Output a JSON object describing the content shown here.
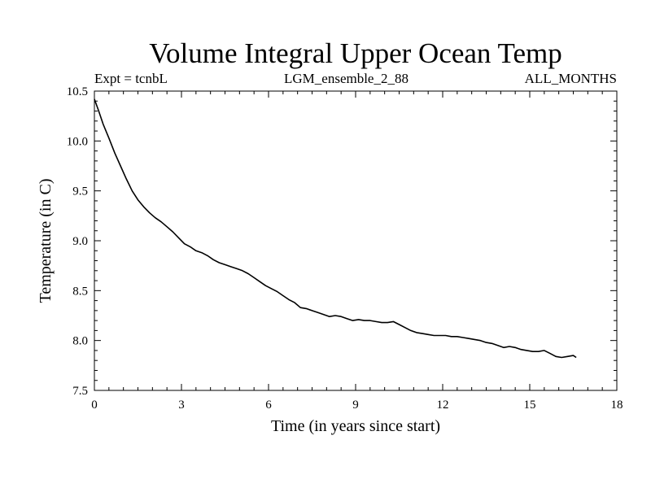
{
  "chart_data": {
    "type": "line",
    "title": "Volume Integral Upper Ocean Temp",
    "subtitles": {
      "left": "Expt = tcnbL",
      "center": "LGM_ensemble_2_88",
      "right": "ALL_MONTHS"
    },
    "xlabel": "Time (in years since start)",
    "ylabel": "Temperature (in C)",
    "xlim": [
      0,
      18
    ],
    "ylim": [
      7.5,
      10.5
    ],
    "xticks": [
      0,
      3,
      6,
      9,
      12,
      15,
      18
    ],
    "xtick_labels": [
      "0",
      "3",
      "6",
      "9",
      "12",
      "15",
      "18"
    ],
    "yticks": [
      7.5,
      8.0,
      8.5,
      9.0,
      9.5,
      10.0,
      10.5
    ],
    "ytick_labels": [
      "7.5",
      "8.0",
      "8.5",
      "9.0",
      "9.5",
      "10.0",
      "10.5"
    ],
    "grid": false,
    "series": [
      {
        "name": "Volume Integral Upper Ocean Temp",
        "color": "#000000",
        "x": [
          0.0,
          0.15,
          0.3,
          0.5,
          0.7,
          0.9,
          1.1,
          1.3,
          1.5,
          1.7,
          1.9,
          2.1,
          2.3,
          2.5,
          2.7,
          2.9,
          3.1,
          3.3,
          3.5,
          3.7,
          3.9,
          4.1,
          4.3,
          4.5,
          4.7,
          4.9,
          5.1,
          5.3,
          5.5,
          5.7,
          5.9,
          6.1,
          6.3,
          6.5,
          6.7,
          6.9,
          7.1,
          7.3,
          7.5,
          7.7,
          7.9,
          8.1,
          8.3,
          8.5,
          8.7,
          8.9,
          9.1,
          9.3,
          9.5,
          9.7,
          9.9,
          10.1,
          10.3,
          10.5,
          10.7,
          10.9,
          11.1,
          11.3,
          11.5,
          11.7,
          11.9,
          12.1,
          12.3,
          12.5,
          12.7,
          12.9,
          13.1,
          13.3,
          13.5,
          13.7,
          13.9,
          14.1,
          14.3,
          14.5,
          14.7,
          14.9,
          15.1,
          15.3,
          15.5,
          15.7,
          15.9,
          16.1,
          16.3,
          16.5,
          16.6
        ],
        "values": [
          10.42,
          10.3,
          10.17,
          10.03,
          9.88,
          9.75,
          9.62,
          9.5,
          9.41,
          9.34,
          9.28,
          9.23,
          9.19,
          9.14,
          9.09,
          9.03,
          8.97,
          8.94,
          8.9,
          8.88,
          8.85,
          8.81,
          8.78,
          8.76,
          8.74,
          8.72,
          8.7,
          8.67,
          8.63,
          8.59,
          8.55,
          8.52,
          8.49,
          8.45,
          8.41,
          8.38,
          8.33,
          8.32,
          8.3,
          8.28,
          8.26,
          8.24,
          8.25,
          8.24,
          8.22,
          8.2,
          8.21,
          8.2,
          8.2,
          8.19,
          8.18,
          8.18,
          8.19,
          8.16,
          8.13,
          8.1,
          8.08,
          8.07,
          8.06,
          8.05,
          8.05,
          8.05,
          8.04,
          8.04,
          8.03,
          8.02,
          8.01,
          8.0,
          7.98,
          7.97,
          7.95,
          7.93,
          7.94,
          7.93,
          7.91,
          7.9,
          7.89,
          7.89,
          7.9,
          7.87,
          7.84,
          7.83,
          7.84,
          7.85,
          7.83
        ]
      }
    ]
  }
}
